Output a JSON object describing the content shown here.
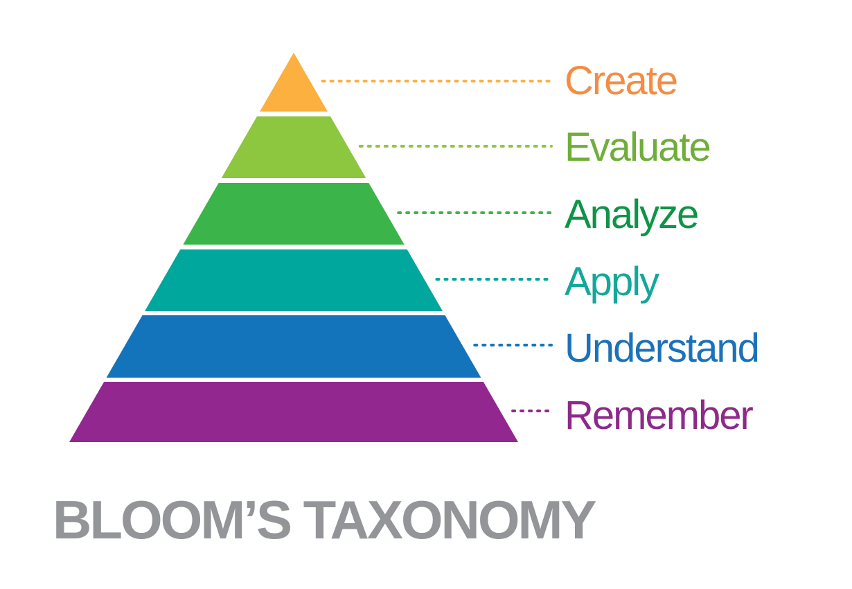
{
  "title": "BLOOM’S TAXONOMY",
  "title_color": "#939598",
  "levels": [
    {
      "label": "Create",
      "fill": "#FBB040",
      "text_color": "#F58C42"
    },
    {
      "label": "Evaluate",
      "fill": "#8DC63F",
      "text_color": "#6FAE3A"
    },
    {
      "label": "Analyze",
      "fill": "#3BB54A",
      "text_color": "#0E9447"
    },
    {
      "label": "Apply",
      "fill": "#00A79D",
      "text_color": "#14A79B"
    },
    {
      "label": "Understand",
      "fill": "#1374BB",
      "text_color": "#1C72B8"
    },
    {
      "label": "Remember",
      "fill": "#92278F",
      "text_color": "#8C2A8A"
    }
  ]
}
